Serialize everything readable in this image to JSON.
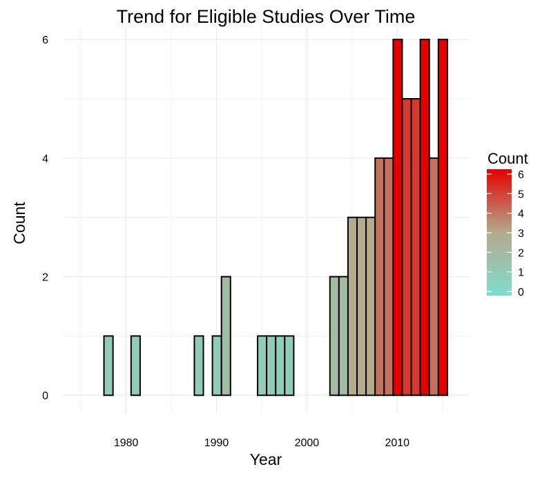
{
  "chart_data": {
    "type": "bar",
    "title": "Trend for Eligible Studies Over Time",
    "xlabel": "Year",
    "ylabel": "Count",
    "xlim": [
      1973,
      2018
    ],
    "ylim": [
      -0.3,
      6.2
    ],
    "x_ticks": [
      1980,
      1990,
      2000,
      2010
    ],
    "y_ticks": [
      0,
      2,
      4,
      6
    ],
    "grid": true,
    "bin_width": 1,
    "x": [
      1975,
      1976,
      1977,
      1978,
      1979,
      1980,
      1981,
      1982,
      1983,
      1984,
      1985,
      1986,
      1987,
      1988,
      1989,
      1990,
      1991,
      1992,
      1993,
      1994,
      1995,
      1996,
      1997,
      1998,
      1999,
      2000,
      2001,
      2002,
      2003,
      2004,
      2005,
      2006,
      2007,
      2008,
      2009,
      2010,
      2011,
      2012,
      2013,
      2014,
      2015
    ],
    "values": [
      0,
      0,
      0,
      1,
      0,
      0,
      1,
      0,
      0,
      0,
      0,
      0,
      0,
      1,
      0,
      1,
      2,
      0,
      0,
      0,
      1,
      1,
      1,
      1,
      0,
      0,
      0,
      0,
      2,
      2,
      3,
      3,
      3,
      4,
      4,
      6,
      5,
      5,
      6,
      4,
      6
    ],
    "legend": {
      "title": "Count",
      "position": "right",
      "type": "colorbar",
      "labels": [
        "6",
        "5",
        "4",
        "3",
        "2",
        "1",
        "0"
      ],
      "min": 0,
      "max": 6,
      "color_low": "#7FDDD0",
      "color_mid": "#B4AA8C",
      "color_high": "#E50000"
    },
    "bar_outline": "#000000",
    "grid_color": "#EBEBEB"
  }
}
